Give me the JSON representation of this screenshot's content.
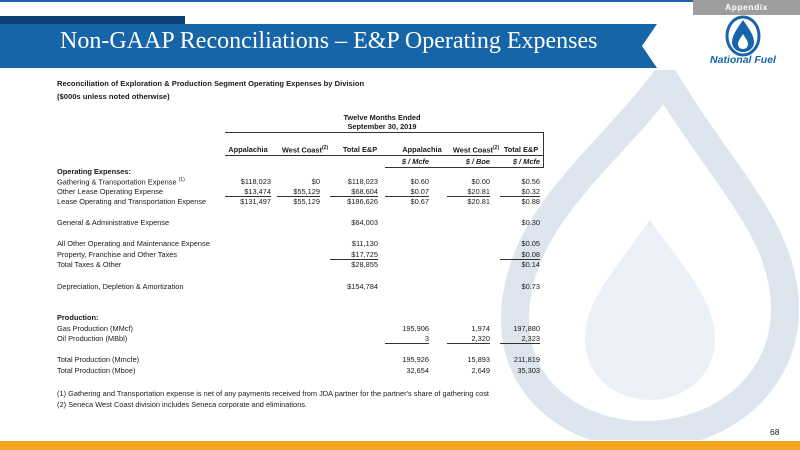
{
  "header": {
    "tab_label": "Appendix",
    "title": "Non-GAAP Reconciliations – E&P Operating Expenses",
    "logo_text": "National Fuel"
  },
  "report": {
    "subtitle_1": "Reconciliation of Exploration & Production Segment Operating Expenses by Division",
    "subtitle_2": "($000s unless noted otherwise)",
    "period_line_1": "Twelve Months Ended",
    "period_line_2": "September 30, 2019",
    "columns": [
      "Appalachia",
      "West Coast",
      "Total E&P",
      "Appalachia",
      "West Coast",
      "Total E&P"
    ],
    "column_sup": "(2)",
    "units": [
      "$ / Mcfe",
      "$ / Boe",
      "$ / Mcfe"
    ],
    "section_opex": "Operating Expenses:",
    "rows": [
      {
        "label": "Gathering & Transportation Expense",
        "sup": "(1)",
        "values": [
          "$118,023",
          "$0",
          "$118,023",
          "$0.60",
          "$0.00",
          "$0.56"
        ]
      },
      {
        "label": "Other Lease Operating Expense",
        "sup": "",
        "values": [
          "$13,474",
          "$55,129",
          "$68,604",
          "$0.07",
          "$20.81",
          "$0.32"
        ]
      },
      {
        "label": "Lease Operating and Transportation Expense",
        "sup": "",
        "values": [
          "$131,497",
          "$55,129",
          "$186,626",
          "$0.67",
          "$20.81",
          "$0.88"
        ]
      },
      {
        "label": "General & Administrative Expense",
        "sup": "",
        "values": [
          "",
          "",
          "$64,003",
          "",
          "",
          "$0.30"
        ]
      },
      {
        "label": "All Other Operating and Maintenance Expense",
        "sup": "",
        "values": [
          "",
          "",
          "$11,130",
          "",
          "",
          "$0.05"
        ]
      },
      {
        "label": "Property, Franchise and Other Taxes",
        "sup": "",
        "values": [
          "",
          "",
          "$17,725",
          "",
          "",
          "$0.08"
        ]
      },
      {
        "label": "Total Taxes & Other",
        "sup": "",
        "values": [
          "",
          "",
          "$28,855",
          "",
          "",
          "$0.14"
        ]
      },
      {
        "label": "Depreciation, Depletion & Amortization",
        "sup": "",
        "values": [
          "",
          "",
          "$154,784",
          "",
          "",
          "$0.73"
        ]
      }
    ],
    "section_production": "Production:",
    "production_rows": [
      {
        "label": "Gas Production (MMcf)",
        "values": [
          "195,906",
          "1,974",
          "197,880"
        ]
      },
      {
        "label": "Oil Production (MBbl)",
        "values": [
          "3",
          "2,320",
          "2,323"
        ]
      },
      {
        "label": "Total Production (Mmcfe)",
        "values": [
          "195,926",
          "15,893",
          "211,819"
        ]
      },
      {
        "label": "Total Production (Mboe)",
        "values": [
          "32,654",
          "2,649",
          "35,303"
        ]
      }
    ],
    "footnotes": [
      "(1) Gathering and Transportation expense is net of any payments received from JDA partner for the partner's share of gathering cost",
      "(2) Seneca West Coast division includes Seneca corporate and eliminations."
    ]
  },
  "page_number": "68",
  "colors": {
    "brand_blue": "#1565a8",
    "accent_orange": "#f4a623",
    "tab_gray": "#9e9e9e"
  }
}
